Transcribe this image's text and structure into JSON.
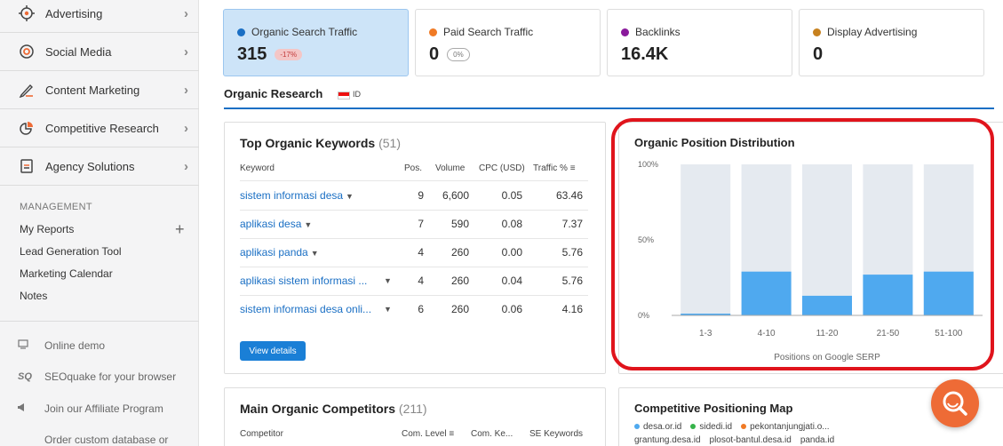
{
  "sidebar": {
    "items": [
      {
        "label": "Advertising",
        "icon": "target-icon"
      },
      {
        "label": "Social Media",
        "icon": "social-icon"
      },
      {
        "label": "Content Marketing",
        "icon": "pen-icon"
      },
      {
        "label": "Competitive Research",
        "icon": "pie-icon"
      },
      {
        "label": "Agency Solutions",
        "icon": "document-icon"
      }
    ],
    "management_title": "MANAGEMENT",
    "management_items": [
      "My Reports",
      "Lead Generation Tool",
      "Marketing Calendar",
      "Notes"
    ],
    "footer_items": [
      {
        "label": "Online demo",
        "icon": "screen-icon"
      },
      {
        "label": "SEOquake for your browser",
        "icon": "sq-icon",
        "icon_text": "SQ"
      },
      {
        "label": "Join our Affiliate Program",
        "icon": "megaphone-icon"
      },
      {
        "label": "Order custom database or",
        "icon": "database-icon"
      }
    ]
  },
  "metrics": [
    {
      "label": "Organic Search Traffic",
      "value": "315",
      "badge": "-17%",
      "color": "#1a6fc4",
      "active": true
    },
    {
      "label": "Paid Search Traffic",
      "value": "0",
      "badge": "0%",
      "color": "#f07a25",
      "active": false
    },
    {
      "label": "Backlinks",
      "value": "16.4K",
      "badge": "",
      "color": "#8a1a9c",
      "active": false
    },
    {
      "label": "Display Advertising",
      "value": "0",
      "badge": "",
      "color": "#c7811f",
      "active": false
    }
  ],
  "organic_research": {
    "title": "Organic Research",
    "region": "ID"
  },
  "top_keywords": {
    "title": "Top Organic Keywords",
    "count": "(51)",
    "columns": [
      "Keyword",
      "Pos.",
      "Volume",
      "CPC (USD)",
      "Traffic %"
    ],
    "rows": [
      {
        "keyword": "sistem informasi desa",
        "pos": "9",
        "volume": "6,600",
        "cpc": "0.05",
        "traffic": "63.46"
      },
      {
        "keyword": "aplikasi desa",
        "pos": "7",
        "volume": "590",
        "cpc": "0.08",
        "traffic": "7.37"
      },
      {
        "keyword": "aplikasi panda",
        "pos": "4",
        "volume": "260",
        "cpc": "0.00",
        "traffic": "5.76"
      },
      {
        "keyword": "aplikasi sistem informasi ...",
        "pos": "4",
        "volume": "260",
        "cpc": "0.04",
        "traffic": "5.76"
      },
      {
        "keyword": "sistem informasi desa onli...",
        "pos": "6",
        "volume": "260",
        "cpc": "0.06",
        "traffic": "4.16"
      }
    ],
    "button": "View details"
  },
  "position_distribution": {
    "title": "Organic Position Distribution"
  },
  "chart_data": {
    "type": "bar",
    "title": "Organic Position Distribution",
    "categories": [
      "1-3",
      "4-10",
      "11-20",
      "21-50",
      "51-100"
    ],
    "values": [
      1,
      29,
      13,
      27,
      29
    ],
    "xlabel": "Positions on Google SERP",
    "ylabel": "",
    "ylim": [
      0,
      100
    ],
    "yticks": [
      "100%",
      "50%",
      "0%"
    ],
    "colors": {
      "bar": "#4fa9ef",
      "background": "#e5eaf0"
    }
  },
  "competitors": {
    "title": "Main Organic Competitors",
    "count": "(211)",
    "columns": [
      "Competitor",
      "Com. Level",
      "Com. Ke...",
      "SE Keywords"
    ]
  },
  "positioning_map": {
    "title": "Competitive Positioning Map",
    "legend": [
      {
        "label": "desa.or.id",
        "color": "#4fa9ef"
      },
      {
        "label": "sidedi.id",
        "color": "#36b34a"
      },
      {
        "label": "pekontanjungjati.o...",
        "color": "#f07a25"
      }
    ],
    "legend2": [
      {
        "label": "grantung.desa.id",
        "color": "#8a1a9c"
      },
      {
        "label": "plosot-bantul.desa.id",
        "color": "#e0141c"
      },
      {
        "label": "panda.id",
        "color": "#f5c518"
      }
    ]
  }
}
